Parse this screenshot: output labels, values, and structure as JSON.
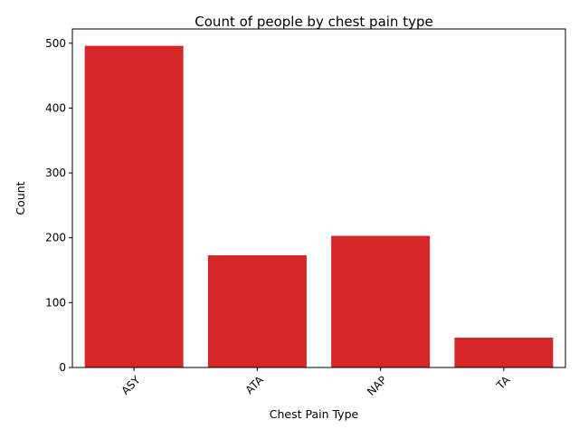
{
  "chart_data": {
    "type": "bar",
    "title": "Count of people by chest pain type",
    "xlabel": "Chest Pain Type",
    "ylabel": "Count",
    "categories": [
      "ASY",
      "ATA",
      "NAP",
      "TA"
    ],
    "values": [
      496,
      173,
      203,
      46
    ],
    "ylim": [
      0,
      522
    ],
    "yticks": [
      0,
      100,
      200,
      300,
      400,
      500
    ],
    "grid": false,
    "legend": "none",
    "bar_color": "#d62728",
    "xtick_rotation_deg": 45
  }
}
